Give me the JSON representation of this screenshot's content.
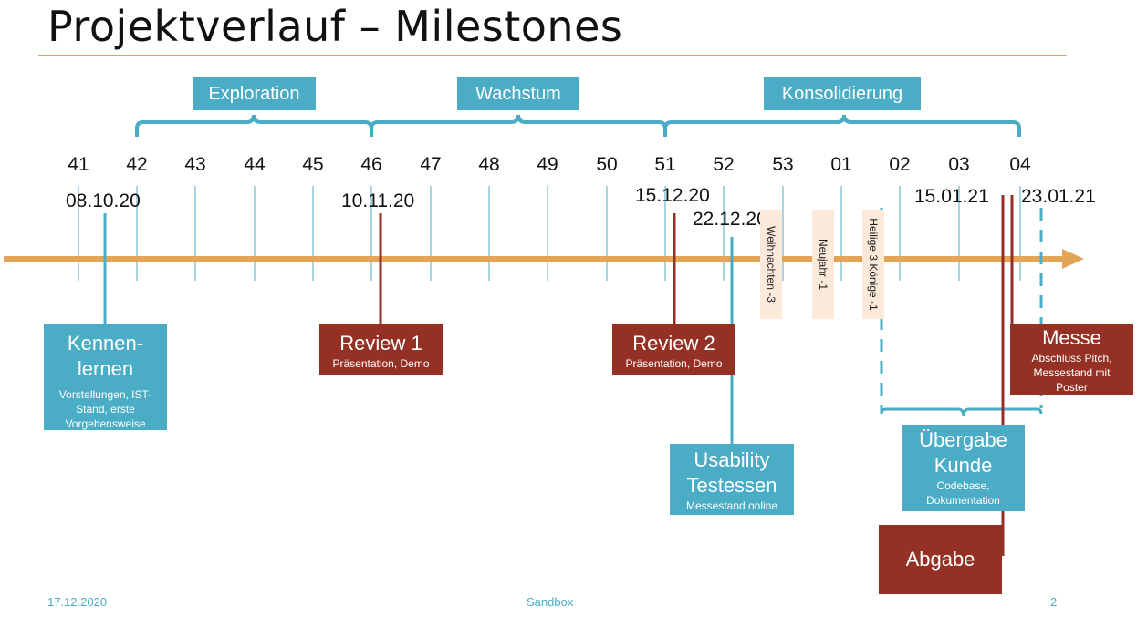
{
  "title": "Projektverlauf – Milestones",
  "phases": [
    "Exploration",
    "Wachstum",
    "Konsolidierung"
  ],
  "weeks": [
    "41",
    "42",
    "43",
    "44",
    "45",
    "46",
    "47",
    "48",
    "49",
    "50",
    "51",
    "52",
    "53",
    "01",
    "02",
    "03",
    "04"
  ],
  "dates": {
    "d1": "08.10.20",
    "d2": "10.11.20",
    "d3": "15.12.20",
    "d4": "22.12.20",
    "d5": "15.01.21",
    "d6": "23.01.21"
  },
  "holidays": [
    "Weihnachten -3",
    "Neujahr -1",
    "Heilige 3 Könige -1"
  ],
  "milestones": {
    "kennenlernen": {
      "title": "Kennen-lernen",
      "sub": "Vorstellungen, IST-Stand, erste Vorgehensweise"
    },
    "review1": {
      "title": "Review 1",
      "sub": "Präsentation, Demo"
    },
    "review2": {
      "title": "Review 2",
      "sub": "Präsentation, Demo"
    },
    "usability": {
      "title": "Usability Testessen",
      "sub": "Messestand online"
    },
    "uebergabe": {
      "title": "Übergabe Kunde",
      "sub": "Codebase, Dokumentation"
    },
    "messe": {
      "title": "Messe",
      "sub": "Abschluss Pitch, Messestand mit Poster"
    },
    "abgabe": {
      "title": "Abgabe"
    }
  },
  "footer": {
    "date": "17.12.2020",
    "center": "Sandbox",
    "page": "2"
  },
  "colors": {
    "blue": "#4BACC6",
    "red": "#943124",
    "orange": "#E3A457",
    "holiday": "#FBE9DA"
  }
}
